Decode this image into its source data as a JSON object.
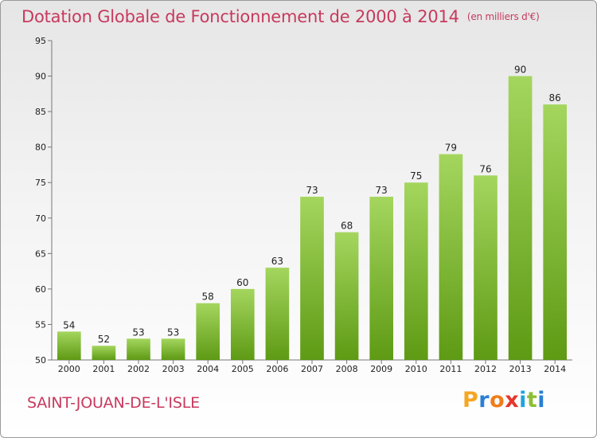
{
  "header": {
    "title": "Dotation Globale de Fonctionnement de 2000 à 2014",
    "unit": "(en milliers d'€)"
  },
  "commune": "SAINT-JOUAN-DE-L'ISLE",
  "brand": {
    "letters": [
      "P",
      "r",
      "o",
      "x",
      "i",
      "t",
      "i"
    ],
    "colors": [
      "#f5a623",
      "#2a7fd4",
      "#f07d1a",
      "#e5362c",
      "#1fa3df",
      "#8dbe33",
      "#2a7fd4"
    ]
  },
  "colors": {
    "bar_top": "#a4d65e",
    "bar_bottom": "#5e9a14",
    "title": "#c8395d"
  },
  "chart_data": {
    "type": "bar",
    "categories": [
      "2000",
      "2001",
      "2002",
      "2003",
      "2004",
      "2005",
      "2006",
      "2007",
      "2008",
      "2009",
      "2010",
      "2011",
      "2012",
      "2013",
      "2014"
    ],
    "values": [
      54,
      52,
      53,
      53,
      58,
      60,
      63,
      73,
      68,
      73,
      75,
      79,
      76,
      90,
      86
    ],
    "ylim": [
      50,
      95
    ],
    "yticks": [
      50,
      55,
      60,
      65,
      70,
      75,
      80,
      85,
      90,
      95
    ],
    "grid": false,
    "data_labels": true
  }
}
